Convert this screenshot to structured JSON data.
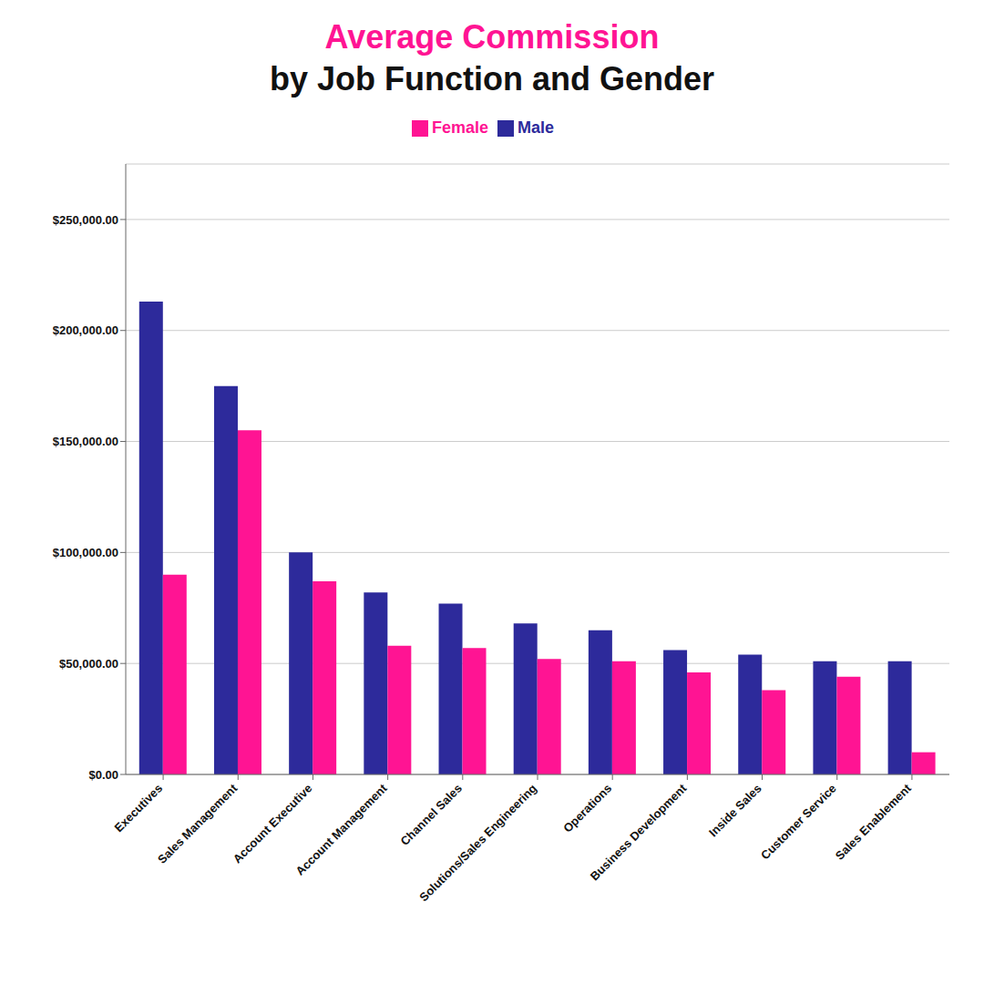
{
  "chart_data": {
    "type": "bar",
    "title": "Average Commission",
    "subtitle": "by Job Function and Gender",
    "categories": [
      "Executives",
      "Sales Management",
      "Account Executive",
      "Account Management",
      "Channel Sales",
      "Solutions/Sales Engineering",
      "Operations",
      "Business Development",
      "Inside Sales",
      "Customer Service",
      "Sales Enablement"
    ],
    "series": [
      {
        "name": "Male",
        "color": "#2D2A9B",
        "values": [
          213000,
          175000,
          100000,
          82000,
          77000,
          68000,
          65000,
          56000,
          54000,
          51000,
          51000
        ]
      },
      {
        "name": "Female",
        "color": "#FF1493",
        "values": [
          90000,
          155000,
          87000,
          58000,
          57000,
          52000,
          51000,
          46000,
          38000,
          44000,
          10000
        ]
      }
    ],
    "ylim": [
      0,
      275000
    ],
    "yticks": [
      {
        "value": 0,
        "label": "$0.00"
      },
      {
        "value": 50000,
        "label": "$50,000.00"
      },
      {
        "value": 100000,
        "label": "$100,000.00"
      },
      {
        "value": 150000,
        "label": "$150,000.00"
      },
      {
        "value": 200000,
        "label": "$200,000.00"
      },
      {
        "value": 250000,
        "label": "$250,000.00"
      }
    ],
    "grid": true,
    "legend": "top"
  }
}
